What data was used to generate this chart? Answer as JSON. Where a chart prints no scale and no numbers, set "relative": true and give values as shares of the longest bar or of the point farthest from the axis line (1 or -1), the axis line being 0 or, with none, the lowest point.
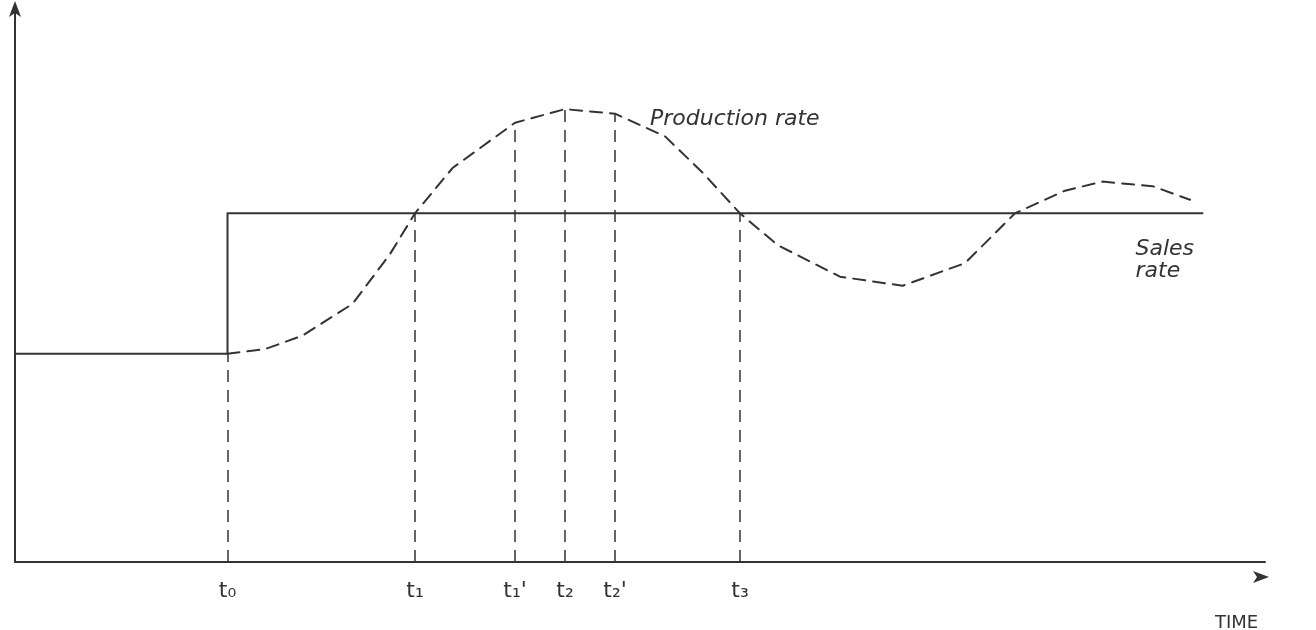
{
  "chart_data": {
    "type": "line",
    "relative": true,
    "xlabel": "TIME",
    "categories": [
      null,
      null,
      null,
      null,
      null,
      null,
      null,
      null,
      null,
      null,
      null,
      null,
      null,
      null,
      null,
      null,
      null,
      "t₀",
      null,
      null,
      null,
      null,
      null,
      null,
      null,
      null,
      null,
      null,
      null,
      null,
      null,
      null,
      "t₁",
      null,
      null,
      null,
      null,
      null,
      null,
      null,
      "t₁'",
      null,
      null,
      null,
      "t₂",
      null,
      null,
      null,
      "t₂'",
      null,
      null,
      null,
      null,
      null,
      null,
      null,
      null,
      null,
      "t₃",
      null,
      null,
      null,
      null,
      null,
      null,
      null,
      null,
      null,
      null,
      null,
      null,
      null,
      null,
      null,
      null,
      null,
      null,
      null,
      null,
      null,
      null,
      null,
      null,
      null,
      null,
      null,
      null,
      null,
      null,
      null,
      null,
      null,
      null,
      null,
      null,
      null,
      null,
      null,
      null,
      null,
      null
    ],
    "series": [
      {
        "name": "Production rate",
        "color": "#333333",
        "line_style": "dashed",
        "values": [
          null,
          null,
          null,
          null,
          null,
          null,
          null,
          null,
          null,
          null,
          null,
          null,
          null,
          null,
          null,
          null,
          null,
          0.46,
          null,
          null,
          0.47,
          null,
          null,
          0.5,
          null,
          null,
          null,
          0.57,
          null,
          null,
          0.68,
          null,
          0.77,
          null,
          null,
          0.87,
          null,
          null,
          null,
          null,
          0.97,
          null,
          null,
          null,
          1.0,
          null,
          null,
          null,
          0.99,
          null,
          null,
          null,
          0.94,
          null,
          null,
          0.86,
          null,
          null,
          0.77,
          null,
          null,
          0.7,
          null,
          null,
          null,
          null,
          0.63,
          null,
          null,
          null,
          null,
          0.61,
          null,
          null,
          null,
          null,
          0.66,
          null,
          null,
          null,
          0.77,
          null,
          null,
          null,
          0.82,
          null,
          null,
          0.84,
          null,
          null,
          null,
          0.83,
          null,
          null,
          0.8,
          null,
          null,
          null,
          null,
          null,
          null
        ]
      },
      {
        "name": "Sales rate",
        "color": "#333333",
        "type": "step",
        "line_style": "solid",
        "values": [
          0.46,
          0.46,
          0.46,
          0.46,
          0.46,
          0.46,
          0.46,
          0.46,
          0.46,
          0.46,
          0.46,
          0.46,
          0.46,
          0.46,
          0.46,
          0.46,
          0.46,
          0.77,
          0.77,
          0.77,
          0.77,
          0.77,
          0.77,
          0.77,
          0.77,
          0.77,
          0.77,
          0.77,
          0.77,
          0.77,
          0.77,
          0.77,
          0.77,
          0.77,
          0.77,
          0.77,
          0.77,
          0.77,
          0.77,
          0.77,
          0.77,
          0.77,
          0.77,
          0.77,
          0.77,
          0.77,
          0.77,
          0.77,
          0.77,
          0.77,
          0.77,
          0.77,
          0.77,
          0.77,
          0.77,
          0.77,
          0.77,
          0.77,
          0.77,
          0.77,
          0.77,
          0.77,
          0.77,
          0.77,
          0.77,
          0.77,
          0.77,
          0.77,
          0.77,
          0.77,
          0.77,
          0.77,
          0.77,
          0.77,
          0.77,
          0.77,
          0.77,
          0.77,
          0.77,
          0.77,
          0.77,
          0.77,
          0.77,
          0.77,
          0.77,
          0.77,
          0.77,
          0.77,
          0.77,
          0.77,
          0.77,
          0.77,
          0.77,
          0.77,
          0.77,
          0.77,
          null,
          null,
          null,
          null,
          null
        ]
      }
    ],
    "ref_lines": [
      {
        "axis": "x",
        "value": "t₀",
        "line_style": "dashed"
      },
      {
        "axis": "x",
        "value": "t₁",
        "line_style": "dashed"
      },
      {
        "axis": "x",
        "value": "t₁'",
        "line_style": "dashed"
      },
      {
        "axis": "x",
        "value": "t₂",
        "line_style": "dashed"
      },
      {
        "axis": "x",
        "value": "t₂'",
        "line_style": "dashed"
      },
      {
        "axis": "x",
        "value": "t₃",
        "line_style": "dashed"
      }
    ],
    "marker": "none",
    "grid": false,
    "legend": false
  }
}
